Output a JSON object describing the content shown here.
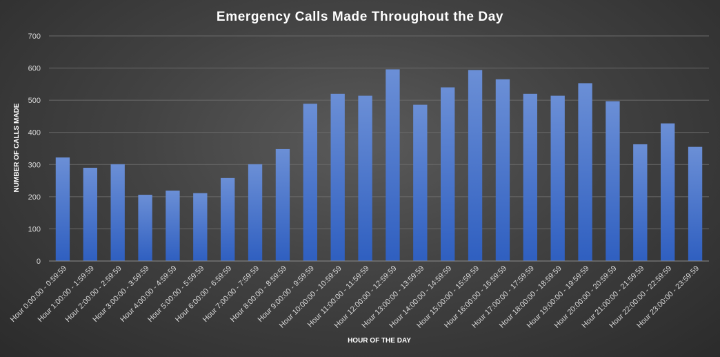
{
  "chart_data": {
    "type": "bar",
    "title": "Emergency Calls Made Throughout the Day",
    "xlabel": "HOUR OF THE DAY",
    "ylabel": "NUMBER OF CALLS MADE",
    "ylim": [
      0,
      700
    ],
    "yticks": [
      0,
      100,
      200,
      300,
      400,
      500,
      600,
      700
    ],
    "grid": true,
    "legend": "none",
    "bar_color": "#4472c4",
    "categories": [
      "Hour 0:00:00 - 0:59:59",
      "Hour 1:00:00 - 1:59:59",
      "Hour 2:00:00 - 2:59:59",
      "Hour 3:00:00 - 3:59:59",
      "Hour 4:00:00 - 4:59:59",
      "Hour 5:00:00 - 5:59:59",
      "Hour 6:00:00 - 6:59:59",
      "Hour 7:00:00 - 7:59:59",
      "Hour 8:00:00 - 8:59:59",
      "Hour 9:00:00 - 9:59:59",
      "Hour 10:00:00 - 10:59:59",
      "Hour 11:00:00 - 11:59:59",
      "Hour 12:00:00 - 12:59:59",
      "Hour 13:00:00 - 13:59:59",
      "Hour 14:00:00 - 14:59:59",
      "Hour 15:00:00 - 15:59:59",
      "Hour 16:00:00 - 16:59:59",
      "Hour 17:00:00 - 17:59:59",
      "Hour 18:00:00 - 18:59:59",
      "Hour 19:00:00 - 19:59:59",
      "Hour 20:00:00 - 20:59:59",
      "Hour 21:00:00 - 21:59:59",
      "Hour 22:00:00 - 22:59:59",
      "Hour 23:00:00 - 23:59:59"
    ],
    "values": [
      322,
      290,
      301,
      206,
      219,
      211,
      258,
      301,
      348,
      489,
      520,
      514,
      596,
      486,
      540,
      594,
      565,
      520,
      514,
      553,
      497,
      363,
      428,
      355
    ]
  }
}
